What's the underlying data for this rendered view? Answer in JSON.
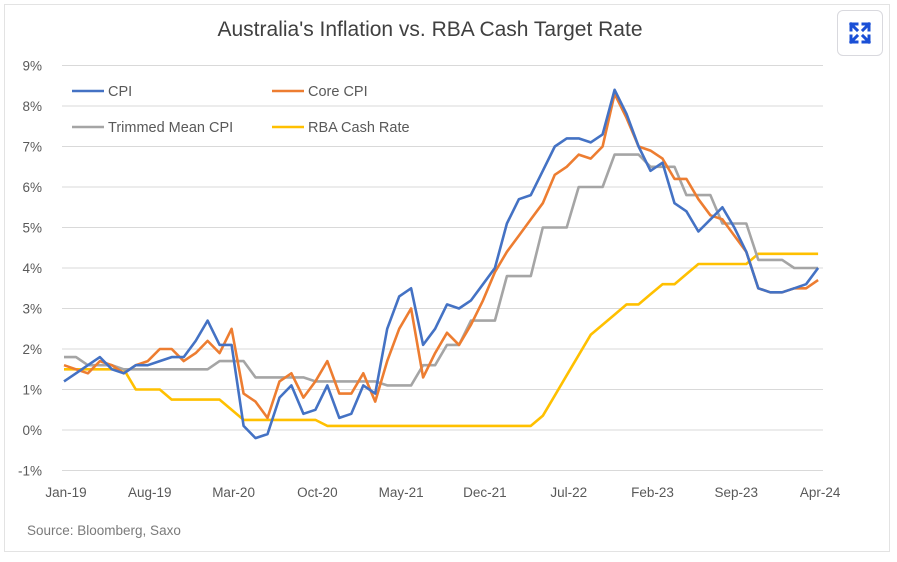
{
  "title": "Australia's Inflation vs. RBA Cash Target Rate",
  "source": "Source: Bloomberg, Saxo",
  "expand_button": {
    "icon": "expand-icon",
    "color": "#1a4fd6"
  },
  "chart_data": {
    "type": "line",
    "title": "Australia's Inflation vs. RBA Cash Target Rate",
    "xlabel": "",
    "ylabel": "",
    "x_start": "Jan-19",
    "x_frequency": "monthly",
    "x_ticks": [
      {
        "label": "Jan-19",
        "index": 0
      },
      {
        "label": "Aug-19",
        "index": 7
      },
      {
        "label": "Mar-20",
        "index": 14
      },
      {
        "label": "Oct-20",
        "index": 21
      },
      {
        "label": "May-21",
        "index": 28
      },
      {
        "label": "Dec-21",
        "index": 35
      },
      {
        "label": "Jul-22",
        "index": 42
      },
      {
        "label": "Feb-23",
        "index": 49
      },
      {
        "label": "Sep-23",
        "index": 56
      },
      {
        "label": "Apr-24",
        "index": 63
      }
    ],
    "y_ticks": [
      "-1%",
      "0%",
      "1%",
      "2%",
      "3%",
      "4%",
      "5%",
      "6%",
      "7%",
      "8%",
      "9%"
    ],
    "ylim": [
      -1,
      9
    ],
    "grid": true,
    "legend_position": "top-left",
    "series": [
      {
        "name": "CPI",
        "color": "#4472c4",
        "values": [
          1.2,
          1.4,
          1.6,
          1.8,
          1.5,
          1.4,
          1.6,
          1.6,
          1.7,
          1.8,
          1.8,
          2.2,
          2.7,
          2.1,
          2.1,
          0.1,
          -0.2,
          -0.1,
          0.8,
          1.1,
          0.4,
          0.5,
          1.1,
          0.3,
          0.4,
          1.1,
          0.9,
          2.5,
          3.3,
          3.5,
          2.1,
          2.5,
          3.1,
          3.0,
          3.2,
          3.6,
          4.0,
          5.1,
          5.7,
          5.8,
          6.4,
          7.0,
          7.2,
          7.2,
          7.1,
          7.3,
          8.4,
          7.8,
          7.0,
          6.4,
          6.6,
          5.6,
          5.4,
          4.9,
          5.2,
          5.5,
          5.0,
          4.4,
          3.5,
          3.4,
          3.4,
          3.5,
          3.6,
          4.0
        ]
      },
      {
        "name": "Core CPI",
        "color": "#ed7d31",
        "values": [
          1.6,
          1.5,
          1.4,
          1.7,
          1.6,
          1.4,
          1.6,
          1.7,
          2.0,
          2.0,
          1.7,
          1.9,
          2.2,
          1.9,
          2.5,
          0.9,
          0.7,
          0.3,
          1.2,
          1.4,
          0.8,
          1.2,
          1.7,
          0.9,
          0.9,
          1.4,
          0.7,
          1.7,
          2.5,
          3.0,
          1.3,
          1.9,
          2.4,
          2.1,
          2.6,
          3.2,
          3.9,
          4.4,
          4.8,
          5.2,
          5.6,
          6.3,
          6.5,
          6.8,
          6.7,
          7.0,
          8.3,
          7.7,
          7.0,
          6.9,
          6.7,
          6.2,
          6.2,
          5.7,
          5.3,
          5.2,
          4.8,
          4.4,
          3.5,
          3.4,
          3.4,
          3.5,
          3.5,
          3.7
        ]
      },
      {
        "name": "Trimmed Mean CPI",
        "color": "#a5a5a5",
        "values": [
          1.8,
          1.8,
          1.6,
          1.6,
          1.6,
          1.5,
          1.5,
          1.5,
          1.5,
          1.5,
          1.5,
          1.5,
          1.5,
          1.7,
          1.7,
          1.7,
          1.3,
          1.3,
          1.3,
          1.3,
          1.3,
          1.2,
          1.2,
          1.2,
          1.2,
          1.2,
          1.2,
          1.1,
          1.1,
          1.1,
          1.6,
          1.6,
          2.1,
          2.1,
          2.7,
          2.7,
          2.7,
          3.8,
          3.8,
          3.8,
          5.0,
          5.0,
          5.0,
          6.0,
          6.0,
          6.0,
          6.8,
          6.8,
          6.8,
          6.5,
          6.5,
          6.5,
          5.8,
          5.8,
          5.8,
          5.1,
          5.1,
          5.1,
          4.2,
          4.2,
          4.2,
          4.0,
          4.0,
          4.0
        ]
      },
      {
        "name": "RBA Cash Rate",
        "color": "#ffc000",
        "values": [
          1.5,
          1.5,
          1.5,
          1.5,
          1.5,
          1.5,
          1.0,
          1.0,
          1.0,
          0.75,
          0.75,
          0.75,
          0.75,
          0.75,
          0.5,
          0.25,
          0.25,
          0.25,
          0.25,
          0.25,
          0.25,
          0.25,
          0.1,
          0.1,
          0.1,
          0.1,
          0.1,
          0.1,
          0.1,
          0.1,
          0.1,
          0.1,
          0.1,
          0.1,
          0.1,
          0.1,
          0.1,
          0.1,
          0.1,
          0.1,
          0.35,
          0.85,
          1.35,
          1.85,
          2.35,
          2.6,
          2.85,
          3.1,
          3.1,
          3.35,
          3.6,
          3.6,
          3.85,
          4.1,
          4.1,
          4.1,
          4.1,
          4.1,
          4.35,
          4.35,
          4.35,
          4.35,
          4.35,
          4.35
        ]
      }
    ]
  }
}
